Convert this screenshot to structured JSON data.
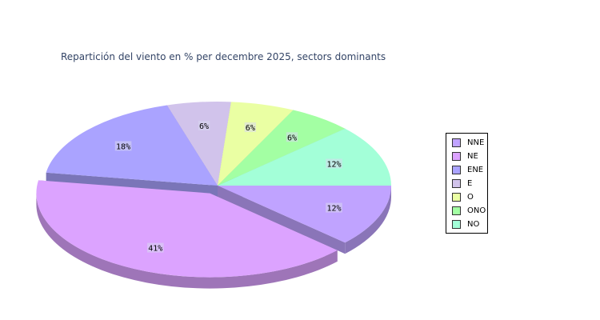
{
  "chart_data": {
    "type": "pie",
    "title": "Repartición del viento en % per decembre 2025, sectors dominants",
    "slices": [
      {
        "name": "NNE",
        "value": 12,
        "label": "12%",
        "color": "#c0a3ff"
      },
      {
        "name": "NE",
        "value": 41,
        "label": "41%",
        "color": "#dca3ff",
        "exploded": true
      },
      {
        "name": "ENE",
        "value": 18,
        "label": "18%",
        "color": "#aaa3ff"
      },
      {
        "name": "E",
        "value": 6,
        "label": "6%",
        "color": "#d1c3eb"
      },
      {
        "name": "O",
        "value": 6,
        "label": "6%",
        "color": "#eaffa3"
      },
      {
        "name": "ONO",
        "value": 6,
        "label": "6%",
        "color": "#a3ffa3"
      },
      {
        "name": "NO",
        "value": 12,
        "label": "12%",
        "color": "#a3ffd8"
      }
    ],
    "legend_position": "right"
  }
}
